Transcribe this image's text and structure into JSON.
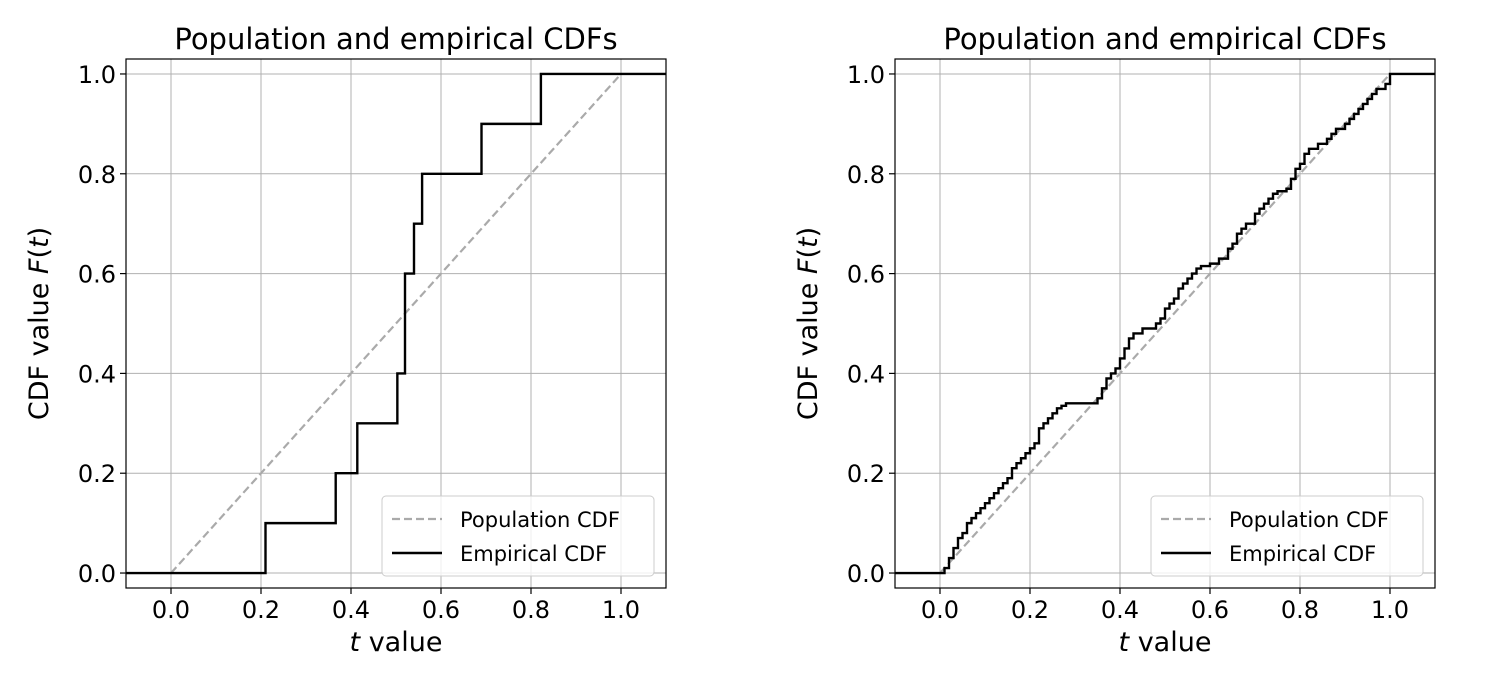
{
  "chart_data": [
    {
      "type": "line",
      "title": "Population and empirical CDFs",
      "xlabel_italic": "t",
      "xlabel_rest": " value",
      "ylabel_prefix": "CDF value ",
      "ylabel_func": "F",
      "ylabel_arg": "t",
      "xlim": [
        -0.1,
        1.1
      ],
      "ylim": [
        -0.03,
        1.03
      ],
      "xticks": [
        "0.0",
        "0.2",
        "0.4",
        "0.6",
        "0.8",
        "1.0"
      ],
      "yticks": [
        "0.0",
        "0.2",
        "0.4",
        "0.6",
        "0.8",
        "1.0"
      ],
      "grid": true,
      "legend_position": "bottom-right",
      "series": [
        {
          "name": "Population CDF",
          "style": "dashed",
          "color": "#aaaaaa",
          "x": [
            0.0,
            1.0
          ],
          "y": [
            0.0,
            1.0
          ]
        },
        {
          "name": "Empirical CDF",
          "style": "step",
          "color": "#000000",
          "x": [
            0.21,
            0.366,
            0.414,
            0.503,
            0.52,
            0.54,
            0.558,
            0.69,
            0.822
          ],
          "y": [
            0.1,
            0.2,
            0.3,
            0.4,
            0.6,
            0.7,
            0.8,
            0.9,
            1.0
          ]
        }
      ]
    },
    {
      "type": "line",
      "title": "Population and empirical CDFs",
      "xlabel_italic": "t",
      "xlabel_rest": " value",
      "ylabel_prefix": "CDF value ",
      "ylabel_func": "F",
      "ylabel_arg": "t",
      "xlim": [
        -0.1,
        1.1
      ],
      "ylim": [
        -0.03,
        1.03
      ],
      "xticks": [
        "0.0",
        "0.2",
        "0.4",
        "0.6",
        "0.8",
        "1.0"
      ],
      "yticks": [
        "0.0",
        "0.2",
        "0.4",
        "0.6",
        "0.8",
        "1.0"
      ],
      "grid": true,
      "legend_position": "bottom-right",
      "series": [
        {
          "name": "Population CDF",
          "style": "dashed",
          "color": "#aaaaaa",
          "x": [
            0.0,
            1.0
          ],
          "y": [
            0.0,
            1.0
          ]
        },
        {
          "name": "Empirical CDF",
          "style": "step",
          "color": "#000000",
          "x": [
            0.01,
            0.02,
            0.03,
            0.04,
            0.05,
            0.06,
            0.07,
            0.08,
            0.09,
            0.1,
            0.11,
            0.12,
            0.13,
            0.14,
            0.15,
            0.16,
            0.17,
            0.18,
            0.19,
            0.2,
            0.21,
            0.22,
            0.23,
            0.24,
            0.25,
            0.26,
            0.27,
            0.28,
            0.35,
            0.36,
            0.37,
            0.38,
            0.39,
            0.4,
            0.41,
            0.42,
            0.43,
            0.45,
            0.47,
            0.48,
            0.49,
            0.5,
            0.51,
            0.52,
            0.53,
            0.54,
            0.55,
            0.56,
            0.57,
            0.58,
            0.6,
            0.62,
            0.64,
            0.65,
            0.66,
            0.67,
            0.68,
            0.7,
            0.71,
            0.72,
            0.73,
            0.74,
            0.75,
            0.77,
            0.78,
            0.79,
            0.8,
            0.81,
            0.82,
            0.84,
            0.86,
            0.87,
            0.88,
            0.9,
            0.91,
            0.92,
            0.93,
            0.94,
            0.95,
            0.96,
            0.97,
            0.99,
            1.0
          ],
          "y": [
            0.01,
            0.03,
            0.05,
            0.07,
            0.08,
            0.1,
            0.11,
            0.12,
            0.13,
            0.14,
            0.15,
            0.16,
            0.17,
            0.18,
            0.19,
            0.21,
            0.22,
            0.23,
            0.24,
            0.25,
            0.26,
            0.29,
            0.3,
            0.31,
            0.32,
            0.33,
            0.335,
            0.34,
            0.35,
            0.37,
            0.39,
            0.4,
            0.41,
            0.43,
            0.45,
            0.47,
            0.48,
            0.49,
            0.49,
            0.5,
            0.51,
            0.53,
            0.54,
            0.55,
            0.57,
            0.58,
            0.59,
            0.6,
            0.61,
            0.615,
            0.62,
            0.63,
            0.65,
            0.66,
            0.68,
            0.69,
            0.7,
            0.72,
            0.73,
            0.74,
            0.75,
            0.76,
            0.765,
            0.77,
            0.79,
            0.81,
            0.82,
            0.84,
            0.85,
            0.86,
            0.87,
            0.88,
            0.89,
            0.9,
            0.91,
            0.92,
            0.93,
            0.94,
            0.95,
            0.96,
            0.97,
            0.98,
            1.0
          ]
        }
      ]
    }
  ]
}
